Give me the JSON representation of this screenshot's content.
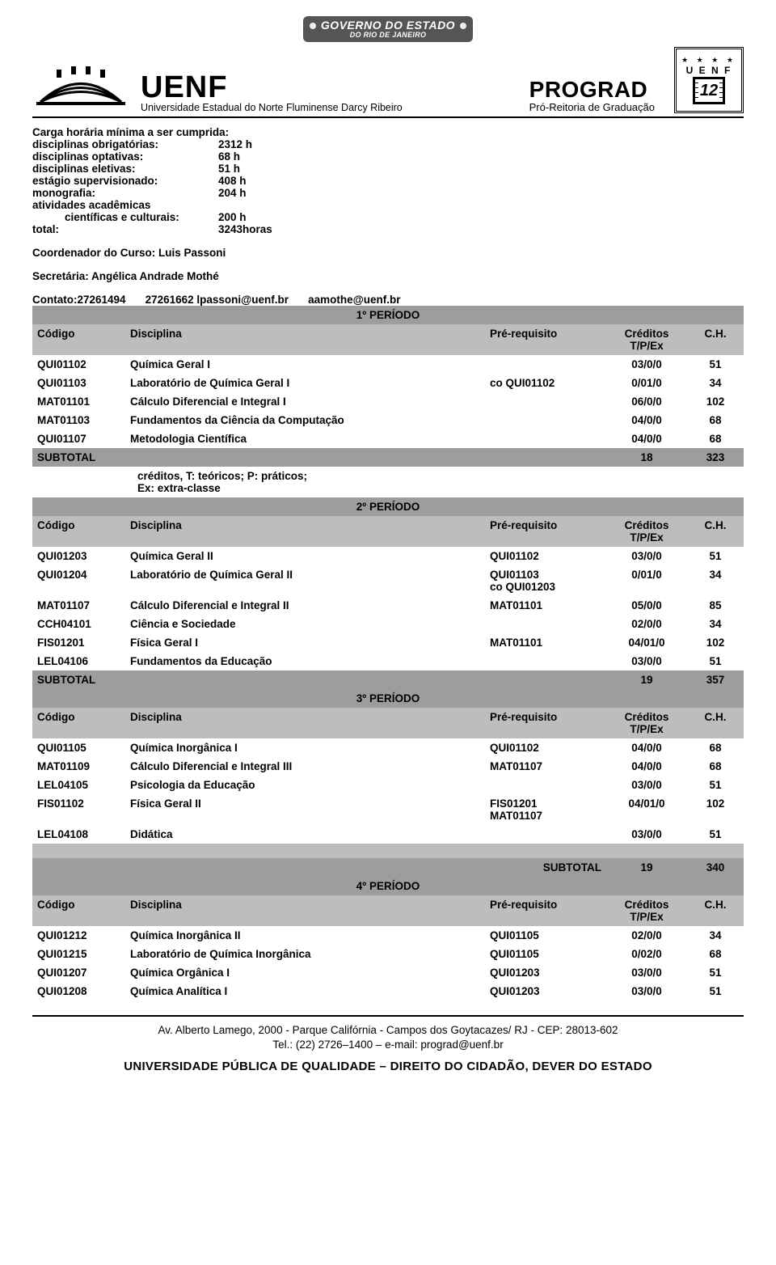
{
  "gov_bar": {
    "line1": "GOVERNO DO ESTADO",
    "line2": "DO RIO DE JANEIRO"
  },
  "uenf": {
    "name": "UENF",
    "subtitle": "Universidade Estadual do Norte Fluminense Darcy Ribeiro"
  },
  "prograd": {
    "title": "PROGRAD",
    "subtitle": "Pró-Reitoria de Graduação"
  },
  "seal": {
    "letters": "U E N F",
    "years": "12"
  },
  "carga": {
    "title": "Carga horária mínima a ser cumprida:",
    "items": [
      {
        "k": "disciplinas obrigatórias:",
        "v": "2312 h"
      },
      {
        "k": "disciplinas optativas:",
        "v": "68 h"
      },
      {
        "k": "disciplinas eletivas:",
        "v": "51 h"
      },
      {
        "k": "estágio supervisionado:",
        "v": "408 h"
      },
      {
        "k": "monografia:",
        "v": "204 h"
      }
    ],
    "atividades_label": "atividades acadêmicas",
    "cientificas": {
      "k": "científicas e culturais:",
      "v": "200 h"
    },
    "total": {
      "k": "total:",
      "v": "3243horas"
    }
  },
  "coord": "Coordenador do Curso: Luis Passoni",
  "secr": "Secretária: Angélica Andrade Mothé",
  "contato": {
    "c1": "Contato:27261494",
    "c2": "27261662 lpassoni@uenf.br",
    "c3": "aamothe@uenf.br"
  },
  "headers": {
    "codigo": "Código",
    "disciplina": "Disciplina",
    "prereq": "Pré-requisito",
    "creditos": "Créditos",
    "tpex": "T/P/Ex",
    "ch": "C.H.",
    "subtotal": "SUBTOTAL"
  },
  "note_creditos": "créditos, T: teóricos; P: práticos;\nEx: extra-classe",
  "periods": [
    {
      "title": "1º PERÍODO",
      "rows": [
        {
          "code": "QUI01102",
          "disc": "Química Geral I",
          "pre": "",
          "cred": "03/0/0",
          "ch": "51"
        },
        {
          "code": "QUI01103",
          "disc": "Laboratório de Química Geral  I",
          "pre": "co QUI01102",
          "cred": "0/01/0",
          "ch": "34"
        },
        {
          "code": "MAT01101",
          "disc": "Cálculo Diferencial e Integral I",
          "pre": "",
          "cred": "06/0/0",
          "ch": "102"
        },
        {
          "code": "MAT01103",
          "disc": "Fundamentos da Ciência da Computação",
          "pre": "",
          "cred": "04/0/0",
          "ch": "68"
        },
        {
          "code": "QUI01107",
          "disc": "Metodologia Científica",
          "pre": "",
          "cred": "04/0/0",
          "ch": "68"
        }
      ],
      "subtotal": {
        "cred": "18",
        "ch": "323"
      },
      "note_after": true
    },
    {
      "title": "2º PERÍODO",
      "rows": [
        {
          "code": "QUI01203",
          "disc": "Química Geral II",
          "pre": "QUI01102",
          "cred": "03/0/0",
          "ch": "51"
        },
        {
          "code": "QUI01204",
          "disc": "Laboratório de Química Geral II",
          "pre": "QUI01103\nco QUI01203",
          "cred": "0/01/0",
          "ch": "34"
        },
        {
          "code": "MAT01107",
          "disc": "Cálculo Diferencial e Integral II",
          "pre": "MAT01101",
          "cred": "05/0/0",
          "ch": "85"
        },
        {
          "code": "CCH04101",
          "disc": "Ciência e Sociedade",
          "pre": "",
          "cred": "02/0/0",
          "ch": "34"
        },
        {
          "code": "FIS01201",
          "disc": "Física Geral I",
          "pre": "MAT01101",
          "cred": "04/01/0",
          "ch": "102"
        },
        {
          "code": "LEL04106",
          "disc": "Fundamentos da Educação",
          "pre": "",
          "cred": "03/0/0",
          "ch": "51"
        }
      ],
      "subtotal": {
        "cred": "19",
        "ch": "357"
      }
    },
    {
      "title": "3º PERÍODO",
      "rows": [
        {
          "code": "QUI01105",
          "disc": "Química Inorgânica I",
          "pre": "QUI01102",
          "cred": "04/0/0",
          "ch": "68"
        },
        {
          "code": "MAT01109",
          "disc": "Cálculo Diferencial e Integral III",
          "pre": "MAT01107",
          "cred": "04/0/0",
          "ch": "68"
        },
        {
          "code": "LEL04105",
          "disc": "Psicologia da Educação",
          "pre": "",
          "cred": "03/0/0",
          "ch": "51"
        },
        {
          "code": "FIS01102",
          "disc": "Física Geral II",
          "pre": "FIS01201\nMAT01107",
          "cred": "04/01/0",
          "ch": "102"
        },
        {
          "code": "LEL04108",
          "disc": "Didática",
          "pre": "",
          "cred": "03/0/0",
          "ch": "51"
        }
      ],
      "blank_then_subtotal_right": true,
      "subtotal": {
        "cred": "19",
        "ch": "340"
      }
    },
    {
      "title": "4º PERÍODO",
      "rows": [
        {
          "code": "QUI01212",
          "disc": "Química Inorgânica II",
          "pre": "QUI01105",
          "cred": "02/0/0",
          "ch": "34"
        },
        {
          "code": "QUI01215",
          "disc": "Laboratório de Química Inorgânica",
          "pre": "QUI01105",
          "cred": "0/02/0",
          "ch": "68"
        },
        {
          "code": "QUI01207",
          "disc": "Química Orgânica I",
          "pre": "QUI01203",
          "cred": "03/0/0",
          "ch": "51"
        },
        {
          "code": "QUI01208",
          "disc": "Química Analítica I",
          "pre": "QUI01203",
          "cred": "03/0/0",
          "ch": "51"
        }
      ]
    }
  ],
  "footer": {
    "addr": "Av. Alberto Lamego, 2000 - Parque Califórnia  -  Campos dos Goytacazes/ RJ -   CEP:  28013-602",
    "tel": "Tel.: (22)  2726–1400  – e-mail: prograd@uenf.br",
    "final": "UNIVERSIDADE PÚBLICA DE QUALIDADE – DIREITO DO CIDADÃO, DEVER DO ESTADO"
  },
  "colors": {
    "period_bar": "#9d9d9d",
    "header_row": "#bdbdbd",
    "subtotal": "#9d9d9d",
    "text": "#000000",
    "gov_bg": "#555555"
  }
}
